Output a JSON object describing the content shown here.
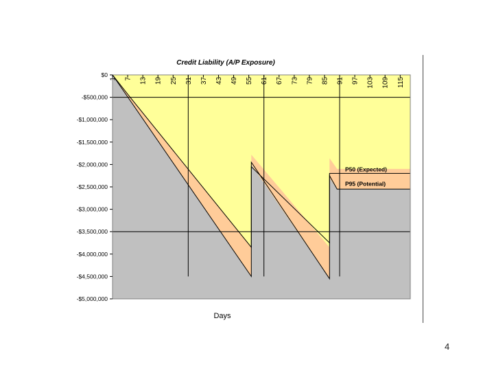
{
  "page_number": "4",
  "chart_data": {
    "type": "area",
    "title": "Credit Liability (A/P Exposure)",
    "xlabel": "Days",
    "ylabel": "",
    "x_ticks": [
      "1",
      "7",
      "13",
      "19",
      "25",
      "31",
      "37",
      "43",
      "49",
      "55",
      "61",
      "67",
      "73",
      "79",
      "85",
      "91",
      "97",
      "103",
      "109",
      "115"
    ],
    "xlim": [
      1,
      119
    ],
    "y_ticks": [
      "$0",
      "-$500,000",
      "-$1,000,000",
      "-$1,500,000",
      "-$2,000,000",
      "-$2,500,000",
      "-$3,000,000",
      "-$3,500,000",
      "-$4,000,000",
      "-$4,500,000",
      "-$5,000,000"
    ],
    "ylim": [
      -5000000,
      0
    ],
    "grid": false,
    "colors": {
      "plot_background": "#ffff99",
      "potential_area": "#c0c0c0",
      "band": "#ffcc99",
      "line": "#000000"
    },
    "series": [
      {
        "name": "P50 (Expected)",
        "points": [
          [
            1,
            0
          ],
          [
            8,
            -500000
          ],
          [
            56,
            -3850000
          ],
          [
            56,
            -2050000
          ],
          [
            87,
            -3750000
          ],
          [
            87,
            -2200000
          ],
          [
            90,
            -2200000
          ],
          [
            119,
            -2200000
          ]
        ]
      },
      {
        "name": "P95 (Potential)",
        "points": [
          [
            1,
            0
          ],
          [
            56,
            -4500000
          ],
          [
            56,
            -1950000
          ],
          [
            87,
            -4550000
          ],
          [
            87,
            -2250000
          ],
          [
            90,
            -2550000
          ],
          [
            119,
            -2550000
          ]
        ]
      }
    ],
    "band_upper": [
      [
        1,
        0
      ],
      [
        56,
        -3850000
      ],
      [
        56,
        -1780000
      ],
      [
        87,
        -3850000
      ],
      [
        87,
        -1860000
      ],
      [
        90,
        -2100000
      ],
      [
        119,
        -2100000
      ]
    ],
    "band_lower": [
      [
        1,
        0
      ],
      [
        56,
        -4500000
      ],
      [
        56,
        -2000000
      ],
      [
        87,
        -4550000
      ],
      [
        87,
        -2300000
      ],
      [
        90,
        -2550000
      ],
      [
        119,
        -2550000
      ]
    ],
    "vertical_reference_lines": [
      31,
      61,
      91
    ],
    "horizontal_reference_lines": [
      -500000,
      -3500000
    ]
  }
}
